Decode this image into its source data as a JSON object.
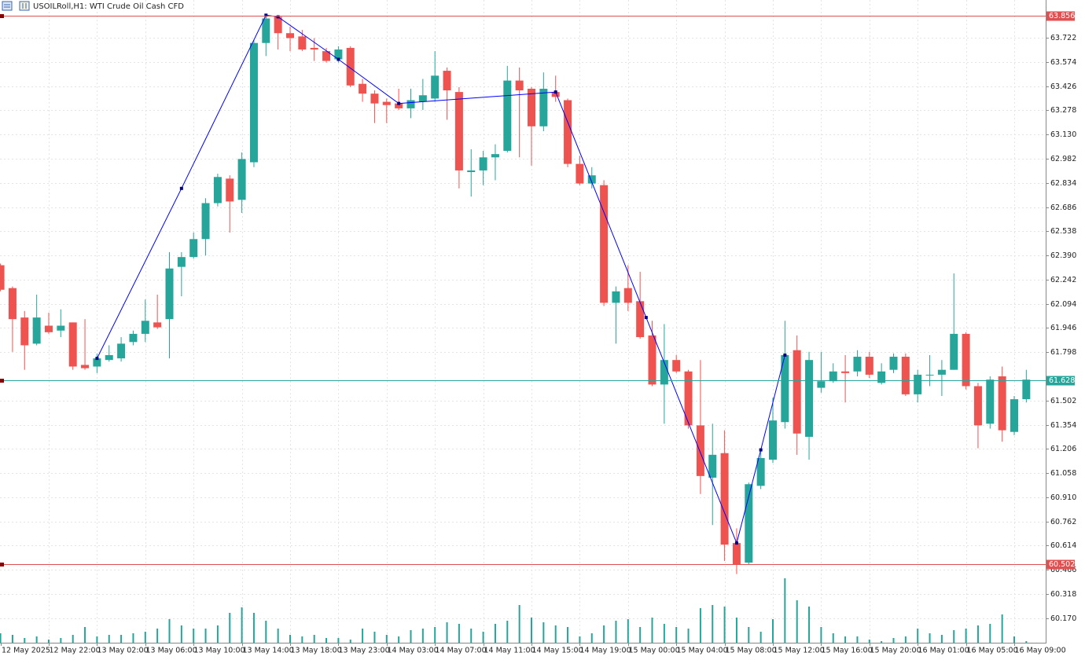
{
  "chart_data": {
    "type": "candlestick",
    "title": "USOILRoll,H1:  WTI Crude Oil Cash CFD",
    "categories": [
      "12 May 2025",
      null,
      null,
      null,
      "12 May 22:00",
      null,
      null,
      null,
      "13 May 02:00",
      null,
      null,
      null,
      "13 May 06:00",
      null,
      null,
      null,
      "13 May 10:00",
      null,
      null,
      null,
      "13 May 14:00",
      null,
      null,
      null,
      "13 May 18:00",
      null,
      null,
      null,
      "13 May 23:00",
      null,
      null,
      null,
      "14 May 03:00",
      null,
      null,
      null,
      "14 May 07:00",
      null,
      null,
      null,
      "14 May 11:00",
      null,
      null,
      null,
      "14 May 15:00",
      null,
      null,
      null,
      "14 May 19:00",
      null,
      null,
      null,
      "15 May 00:00",
      null,
      null,
      null,
      "15 May 04:00",
      null,
      null,
      null,
      "15 May 08:00",
      null,
      null,
      null,
      "15 May 12:00",
      null,
      null,
      null,
      "15 May 16:00",
      null,
      null,
      null,
      "15 May 20:00",
      null,
      null,
      null,
      "16 May 01:00",
      null,
      null,
      null,
      "16 May 05:00",
      null,
      null,
      null,
      "16 May 09:00",
      null
    ],
    "open": [
      62.33,
      62.19,
      62.01,
      61.85,
      61.96,
      61.93,
      61.98,
      61.72,
      61.71,
      61.75,
      61.76,
      61.86,
      61.91,
      61.98,
      62.0,
      62.32,
      62.38,
      62.49,
      62.71,
      62.86,
      62.73,
      62.96,
      63.69,
      63.85,
      63.75,
      63.73,
      63.66,
      63.64,
      63.59,
      63.66,
      63.44,
      63.38,
      63.33,
      63.32,
      63.29,
      63.33,
      63.35,
      63.52,
      63.39,
      62.9,
      62.91,
      62.99,
      63.03,
      63.46,
      63.41,
      63.18,
      63.39,
      63.34,
      62.95,
      62.83,
      62.82,
      62.1,
      62.19,
      62.11,
      61.9,
      61.6,
      61.75,
      61.68,
      61.35,
      61.03,
      61.18,
      60.63,
      60.51,
      60.98,
      61.14,
      61.37,
      61.81,
      61.28,
      61.58,
      61.62,
      61.68,
      61.68,
      61.77,
      61.61,
      61.69,
      61.77,
      61.54,
      61.66,
      61.66,
      61.69,
      61.91,
      61.59,
      61.36,
      61.65,
      61.31,
      61.51
    ],
    "high": [
      62.34,
      62.2,
      62.05,
      62.15,
      62.04,
      62.06,
      61.98,
      62.0,
      61.79,
      61.84,
      61.89,
      61.93,
      62.12,
      62.15,
      62.41,
      62.41,
      62.53,
      62.74,
      62.89,
      62.88,
      63.02,
      63.71,
      63.86,
      63.86,
      63.79,
      63.77,
      63.72,
      63.66,
      63.67,
      63.67,
      63.47,
      63.4,
      63.35,
      63.41,
      63.41,
      63.47,
      63.64,
      63.54,
      63.42,
      63.04,
      63.03,
      63.07,
      63.55,
      63.54,
      63.42,
      63.51,
      63.49,
      63.35,
      63.0,
      62.93,
      62.85,
      62.2,
      62.33,
      62.29,
      61.99,
      61.97,
      61.78,
      61.69,
      61.75,
      61.36,
      61.32,
      60.72,
      61.0,
      61.19,
      61.52,
      61.99,
      61.9,
      61.8,
      61.8,
      61.73,
      61.78,
      61.81,
      61.8,
      61.73,
      61.79,
      61.79,
      61.69,
      61.78,
      61.75,
      62.28,
      61.92,
      61.61,
      61.65,
      61.71,
      61.53,
      61.69
    ],
    "low": [
      62.17,
      61.8,
      61.69,
      61.84,
      61.91,
      61.89,
      61.69,
      61.69,
      61.67,
      61.74,
      61.74,
      61.84,
      61.86,
      61.94,
      61.76,
      62.14,
      62.37,
      62.39,
      62.69,
      62.53,
      62.65,
      62.93,
      63.61,
      63.65,
      63.64,
      63.64,
      63.58,
      63.57,
      63.57,
      63.42,
      63.33,
      63.2,
      63.2,
      63.28,
      63.23,
      63.28,
      63.33,
      63.22,
      62.8,
      62.75,
      62.82,
      62.85,
      63.02,
      62.99,
      62.94,
      63.15,
      63.33,
      62.93,
      62.82,
      62.8,
      62.08,
      61.85,
      62.05,
      61.88,
      61.59,
      61.36,
      61.67,
      61.33,
      60.93,
      60.74,
      60.52,
      60.44,
      60.5,
      60.96,
      61.12,
      61.33,
      61.17,
      61.14,
      61.55,
      61.61,
      61.49,
      61.65,
      61.64,
      61.6,
      61.67,
      61.53,
      61.49,
      61.59,
      61.53,
      61.69,
      61.57,
      61.21,
      61.33,
      61.25,
      61.29,
      61.49
    ],
    "close": [
      62.18,
      62.0,
      61.84,
      62.01,
      61.92,
      61.96,
      61.71,
      61.7,
      61.76,
      61.78,
      61.85,
      61.91,
      61.99,
      61.95,
      62.31,
      62.38,
      62.49,
      62.71,
      62.87,
      62.72,
      62.98,
      63.69,
      63.84,
      63.75,
      63.72,
      63.65,
      63.65,
      63.58,
      63.65,
      63.43,
      63.38,
      63.32,
      63.31,
      63.29,
      63.34,
      63.37,
      63.49,
      63.4,
      62.91,
      62.91,
      62.99,
      63.01,
      63.46,
      63.4,
      63.18,
      63.41,
      63.36,
      62.95,
      62.83,
      62.88,
      62.1,
      62.17,
      62.1,
      61.89,
      61.6,
      61.75,
      61.68,
      61.35,
      61.04,
      61.17,
      60.62,
      60.5,
      60.99,
      61.15,
      61.38,
      61.78,
      61.3,
      61.75,
      61.62,
      61.68,
      61.67,
      61.77,
      61.66,
      61.68,
      61.77,
      61.54,
      61.66,
      61.66,
      61.69,
      61.91,
      61.59,
      61.35,
      61.63,
      61.32,
      61.51,
      61.63
    ],
    "up_color": "#26a69a",
    "down_color": "#ef5350",
    "volume": {
      "color": "#26a69a",
      "values": [
        1200,
        1000,
        600,
        800,
        400,
        600,
        1000,
        2000,
        800,
        1000,
        1000,
        1200,
        1400,
        1800,
        3000,
        2200,
        1800,
        1800,
        2200,
        3800,
        4500,
        3800,
        2800,
        1800,
        1000,
        800,
        1000,
        600,
        600,
        400,
        1800,
        1400,
        1000,
        800,
        1600,
        1800,
        2000,
        2600,
        2400,
        1800,
        1400,
        2400,
        2800,
        4800,
        3200,
        2600,
        2200,
        2000,
        800,
        1200,
        2200,
        2800,
        3000,
        2000,
        3200,
        2400,
        2000,
        1800,
        4400,
        4800,
        4600,
        3200,
        2000,
        1400,
        3000,
        8200,
        5400,
        4600,
        2000,
        1200,
        800,
        800,
        400,
        200,
        600,
        800,
        1800,
        1200,
        1000,
        1600,
        1800,
        2200,
        2400,
        3600,
        800,
        200
      ]
    },
    "zigzag": {
      "color": "#0000ff",
      "x": [
        8,
        15,
        22,
        23,
        28,
        33,
        46,
        53.5,
        61,
        63,
        65
      ],
      "values": [
        61.76,
        62.8,
        63.86,
        63.85,
        63.59,
        63.32,
        63.39,
        62.01,
        60.63,
        61.2,
        61.78
      ]
    },
    "price_lines": [
      {
        "value": 63.856,
        "color": "#e05050"
      },
      {
        "value": 60.502,
        "color": "#e05050"
      },
      {
        "value": 61.628,
        "color": "#26a69a"
      }
    ],
    "ylim": [
      60.02,
      63.953
    ],
    "yticks": [
      63.722,
      63.574,
      63.426,
      63.278,
      {
        "value": 63.13,
        "label": "63.130"
      },
      62.982,
      62.834,
      62.686,
      62.538,
      {
        "value": 62.39,
        "label": "62.390"
      },
      62.242,
      62.094,
      61.946,
      61.798,
      61.502,
      61.354,
      61.206,
      61.058,
      {
        "value": 60.91,
        "label": "60.910"
      },
      60.762,
      60.614,
      60.466,
      60.318,
      {
        "value": 60.17,
        "label": "60.170"
      }
    ],
    "grid": true
  }
}
